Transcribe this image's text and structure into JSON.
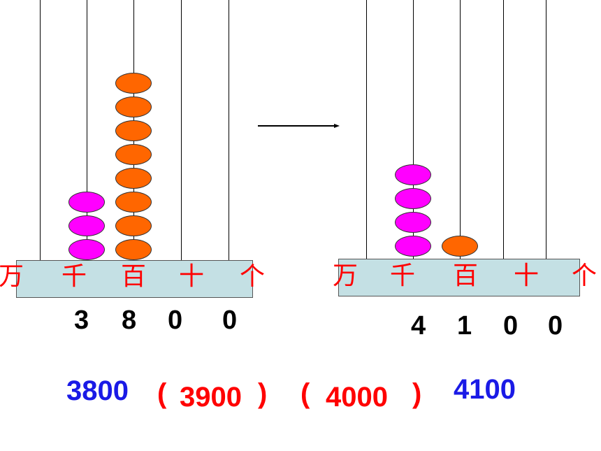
{
  "left_abacus": {
    "place_labels": [
      "万",
      "千",
      "百",
      "十",
      "个"
    ],
    "beads": {
      "thousands": 3,
      "hundreds": 8,
      "tens": 0,
      "ones": 0
    },
    "digits": [
      "3",
      "8",
      "0",
      "0"
    ]
  },
  "right_abacus": {
    "place_labels": [
      "万",
      "千",
      "百",
      "十",
      "个"
    ],
    "beads": {
      "thousands": 4,
      "hundreds": 1,
      "tens": 0,
      "ones": 0
    },
    "digits": [
      "4",
      "1",
      "0",
      "0"
    ]
  },
  "sequence": {
    "start": "3800",
    "open_paren_1": "(",
    "blank_1": "3900",
    "close_paren_1": ")",
    "open_paren_2": "(",
    "blank_2": "4000",
    "close_paren_2": ")",
    "end": "4100"
  },
  "colors": {
    "thousands_bead": "#ff00ff",
    "hundreds_bead": "#ff6600",
    "base": "#c4e0e4",
    "place_label": "#ff0000",
    "sequence_given": "#1a1ae6",
    "sequence_answer": "#ff0000"
  }
}
